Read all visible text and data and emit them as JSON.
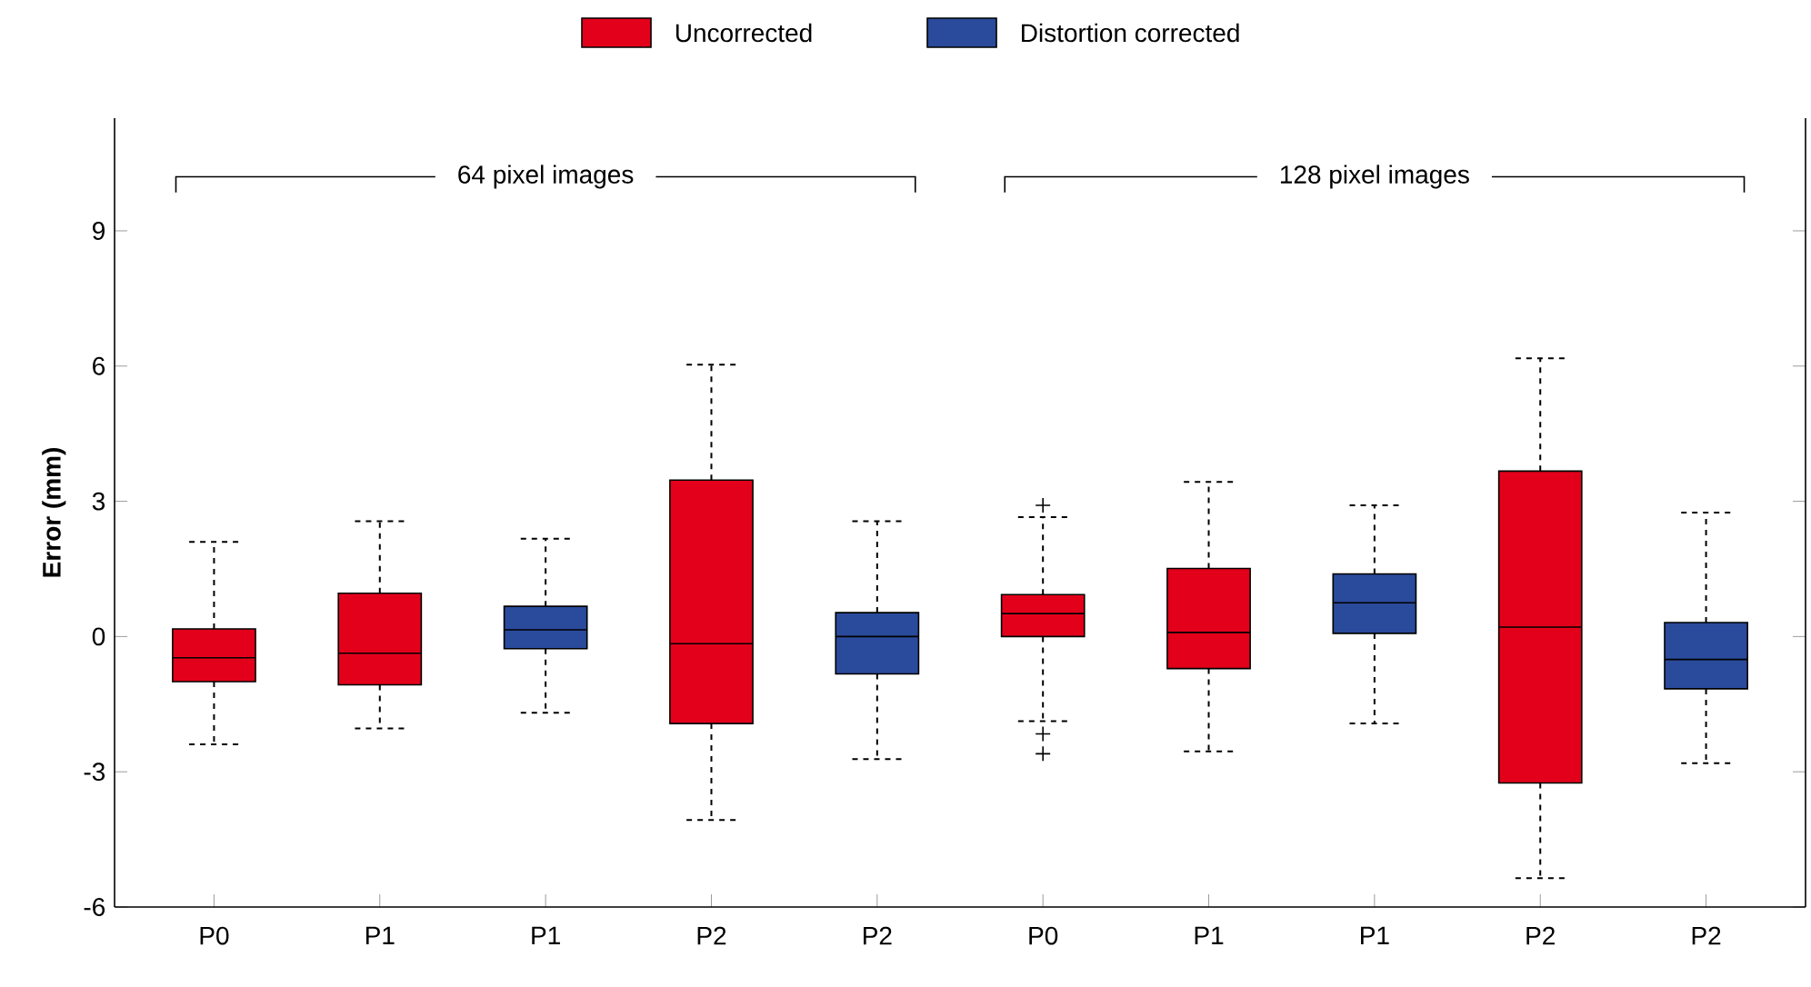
{
  "chart_data": {
    "type": "box",
    "ylabel": "Error (mm)",
    "categories": [
      "P0",
      "P1",
      "P1",
      "P2",
      "P2",
      "P0",
      "P1",
      "P1",
      "P2",
      "P2"
    ],
    "ylim": [
      -6,
      11.5
    ],
    "yticks": [
      -6,
      -3,
      0,
      3,
      6,
      9
    ],
    "legend": "top",
    "grid": false,
    "marker": "cross",
    "annotations": [
      "64 pixel images",
      "128 pixel images"
    ],
    "series": [
      {
        "name": "Uncorrected",
        "color": "#e3001b",
        "boxes": [
          {
            "low": -2.39,
            "q1": -1.0,
            "median": -0.47,
            "q3": 0.17,
            "high": 2.1
          },
          {
            "low": -2.04,
            "q1": -1.07,
            "median": -0.37,
            "q3": 0.96,
            "high": 2.56
          },
          null,
          {
            "low": -4.07,
            "q1": -1.93,
            "median": -0.16,
            "q3": 3.47,
            "high": 6.03
          },
          null,
          {
            "low": -1.88,
            "q1": 0.0,
            "median": 0.51,
            "q3": 0.93,
            "high": 2.65,
            "outliers": [
              2.91,
              -2.16,
              -2.6
            ]
          },
          {
            "low": -2.55,
            "q1": -0.71,
            "median": 0.09,
            "q3": 1.51,
            "high": 3.43
          },
          null,
          {
            "low": -5.36,
            "q1": -3.25,
            "median": 0.21,
            "q3": 3.67,
            "high": 6.17
          },
          null
        ]
      },
      {
        "name": "Distortion corrected",
        "color": "#2a4a9b",
        "boxes": [
          null,
          null,
          {
            "low": -1.69,
            "q1": -0.27,
            "median": 0.15,
            "q3": 0.67,
            "high": 2.17
          },
          null,
          {
            "low": -2.72,
            "q1": -0.83,
            "median": 0.0,
            "q3": 0.53,
            "high": 2.56
          },
          null,
          null,
          {
            "low": -1.93,
            "q1": 0.07,
            "median": 0.75,
            "q3": 1.39,
            "high": 2.91
          },
          null,
          {
            "low": -2.81,
            "q1": -1.16,
            "median": -0.51,
            "q3": 0.31,
            "high": 2.75
          }
        ]
      }
    ]
  }
}
